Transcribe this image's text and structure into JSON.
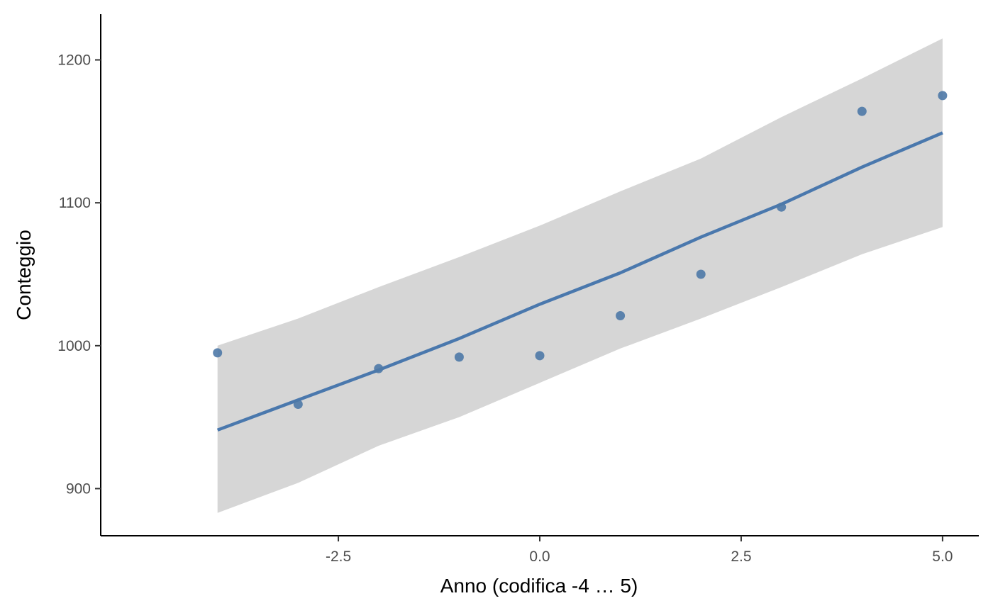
{
  "chart_data": {
    "type": "scatter",
    "xlabel": "Anno (codifica -4 … 5)",
    "ylabel": "Conteggio",
    "xlim": [
      -5.45,
      5.45
    ],
    "ylim": [
      867,
      1232
    ],
    "x_ticks": [
      -2.5,
      0.0,
      2.5,
      5.0
    ],
    "x_tick_labels": [
      "-2.5",
      "0.0",
      "2.5",
      "5.0"
    ],
    "y_ticks": [
      900,
      1000,
      1100,
      1200
    ],
    "y_tick_labels": [
      "900",
      "1000",
      "1100",
      "1200"
    ],
    "grid": false,
    "points": {
      "x": [
        -4,
        -3,
        -2,
        -1,
        0,
        1,
        2,
        3,
        4,
        5
      ],
      "y": [
        995,
        959,
        984,
        992,
        993,
        1021,
        1050,
        1097,
        1164,
        1175
      ]
    },
    "fit_line": {
      "x": [
        -4,
        -3,
        -2,
        -1,
        0,
        1,
        2,
        3,
        4,
        5
      ],
      "y": [
        941,
        962,
        983,
        1005,
        1029,
        1051,
        1076,
        1099,
        1125,
        1149
      ]
    },
    "confidence_band": {
      "x": [
        -4,
        -3,
        -2,
        -1,
        0,
        1,
        2,
        3,
        4,
        5
      ],
      "lower": [
        883,
        904,
        930,
        950,
        974,
        998,
        1019,
        1041,
        1064,
        1083
      ],
      "upper": [
        1000,
        1019,
        1041,
        1062,
        1084,
        1108,
        1131,
        1160,
        1187,
        1215
      ]
    },
    "colors": {
      "points": "#4e79a7",
      "line": "#4a78ad",
      "band": "#d6d6d6",
      "axis": "#000000"
    }
  }
}
